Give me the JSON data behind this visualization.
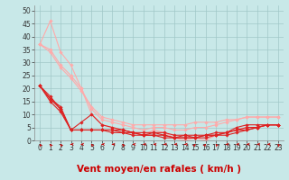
{
  "bg_color": "#c8e8e8",
  "grid_color": "#a0c8c8",
  "xlabel": "Vent moyen/en rafales ( km/h )",
  "xlabel_color": "#cc0000",
  "xlabel_fontsize": 7.5,
  "ylim": [
    0,
    52
  ],
  "xlim": [
    -0.5,
    23.5
  ],
  "yticks": [
    0,
    5,
    10,
    15,
    20,
    25,
    30,
    35,
    40,
    45,
    50
  ],
  "xticks": [
    0,
    1,
    2,
    3,
    4,
    5,
    6,
    7,
    8,
    9,
    10,
    11,
    12,
    13,
    14,
    15,
    16,
    17,
    18,
    19,
    20,
    21,
    22,
    23
  ],
  "tick_fontsize": 5.5,
  "series": [
    {
      "x": [
        0,
        1,
        2,
        3,
        4,
        5,
        6,
        7,
        8,
        9,
        10,
        11,
        12,
        13,
        14,
        15,
        16,
        17,
        18,
        19,
        20,
        21,
        22,
        23
      ],
      "y": [
        37,
        46,
        34,
        29,
        20,
        10,
        6,
        5,
        4,
        3,
        2,
        4,
        3,
        1,
        0,
        1,
        0,
        2,
        3,
        4,
        5,
        5,
        6,
        6
      ],
      "color": "#ffaaaa",
      "marker": "D",
      "markersize": 1.8,
      "linewidth": 0.8,
      "zorder": 2
    },
    {
      "x": [
        0,
        1,
        2,
        3,
        4,
        5,
        6,
        7,
        8,
        9,
        10,
        11,
        12,
        13,
        14,
        15,
        16,
        17,
        18,
        19,
        20,
        21,
        22,
        23
      ],
      "y": [
        37,
        35,
        29,
        25,
        20,
        12,
        8,
        7,
        6,
        5,
        4,
        5,
        5,
        4,
        4,
        5,
        5,
        6,
        7,
        8,
        9,
        9,
        9,
        9
      ],
      "color": "#ffaaaa",
      "marker": "D",
      "markersize": 1.8,
      "linewidth": 0.8,
      "zorder": 2
    },
    {
      "x": [
        0,
        1,
        2,
        3,
        4,
        5,
        6,
        7,
        8,
        9,
        10,
        11,
        12,
        13,
        14,
        15,
        16,
        17,
        18,
        19,
        20,
        21,
        22,
        23
      ],
      "y": [
        37,
        34,
        28,
        24,
        19,
        13,
        9,
        8,
        7,
        6,
        6,
        6,
        6,
        6,
        6,
        7,
        7,
        7,
        8,
        8,
        9,
        9,
        9,
        9
      ],
      "color": "#ffaaaa",
      "marker": "D",
      "markersize": 1.8,
      "linewidth": 0.8,
      "zorder": 2
    },
    {
      "x": [
        0,
        1,
        2,
        3,
        4,
        5,
        6,
        7,
        8,
        9,
        10,
        11,
        12,
        13,
        14,
        15,
        16,
        17,
        18,
        19,
        20,
        21,
        22,
        23
      ],
      "y": [
        21,
        16,
        13,
        4,
        7,
        10,
        6,
        5,
        4,
        3,
        2,
        3,
        2,
        1,
        2,
        1,
        2,
        2,
        3,
        5,
        6,
        6,
        6,
        6
      ],
      "color": "#dd2222",
      "marker": "D",
      "markersize": 1.8,
      "linewidth": 0.8,
      "zorder": 3
    },
    {
      "x": [
        0,
        1,
        2,
        3,
        4,
        5,
        6,
        7,
        8,
        9,
        10,
        11,
        12,
        13,
        14,
        15,
        16,
        17,
        18,
        19,
        20,
        21,
        22,
        23
      ],
      "y": [
        21,
        16,
        12,
        4,
        4,
        4,
        4,
        4,
        4,
        3,
        3,
        3,
        3,
        2,
        2,
        2,
        2,
        3,
        3,
        4,
        5,
        5,
        6,
        6
      ],
      "color": "#dd2222",
      "marker": "D",
      "markersize": 1.8,
      "linewidth": 0.8,
      "zorder": 3
    },
    {
      "x": [
        0,
        1,
        2,
        3,
        4,
        5,
        6,
        7,
        8,
        9,
        10,
        11,
        12,
        13,
        14,
        15,
        16,
        17,
        18,
        19,
        20,
        21,
        22,
        23
      ],
      "y": [
        21,
        17,
        12,
        4,
        4,
        4,
        4,
        4,
        3,
        3,
        2,
        2,
        2,
        1,
        1,
        1,
        2,
        2,
        3,
        4,
        4,
        5,
        6,
        6
      ],
      "color": "#dd2222",
      "marker": "D",
      "markersize": 1.8,
      "linewidth": 0.8,
      "zorder": 3
    },
    {
      "x": [
        0,
        1,
        2,
        3,
        4,
        5,
        6,
        7,
        8,
        9,
        10,
        11,
        12,
        13,
        14,
        15,
        16,
        17,
        18,
        19,
        20,
        21,
        22,
        23
      ],
      "y": [
        21,
        15,
        11,
        4,
        4,
        4,
        4,
        3,
        3,
        2,
        2,
        2,
        1,
        1,
        1,
        1,
        1,
        2,
        2,
        3,
        4,
        5,
        6,
        6
      ],
      "color": "#dd2222",
      "marker": "D",
      "markersize": 1.8,
      "linewidth": 0.8,
      "zorder": 3
    }
  ],
  "arrow_color": "#cc0000",
  "arrow_angles": [
    315,
    315,
    315,
    270,
    270,
    315,
    270,
    270,
    315,
    270,
    270,
    270,
    270,
    270,
    270,
    45,
    45,
    315,
    270,
    270,
    270,
    270,
    270,
    315
  ]
}
